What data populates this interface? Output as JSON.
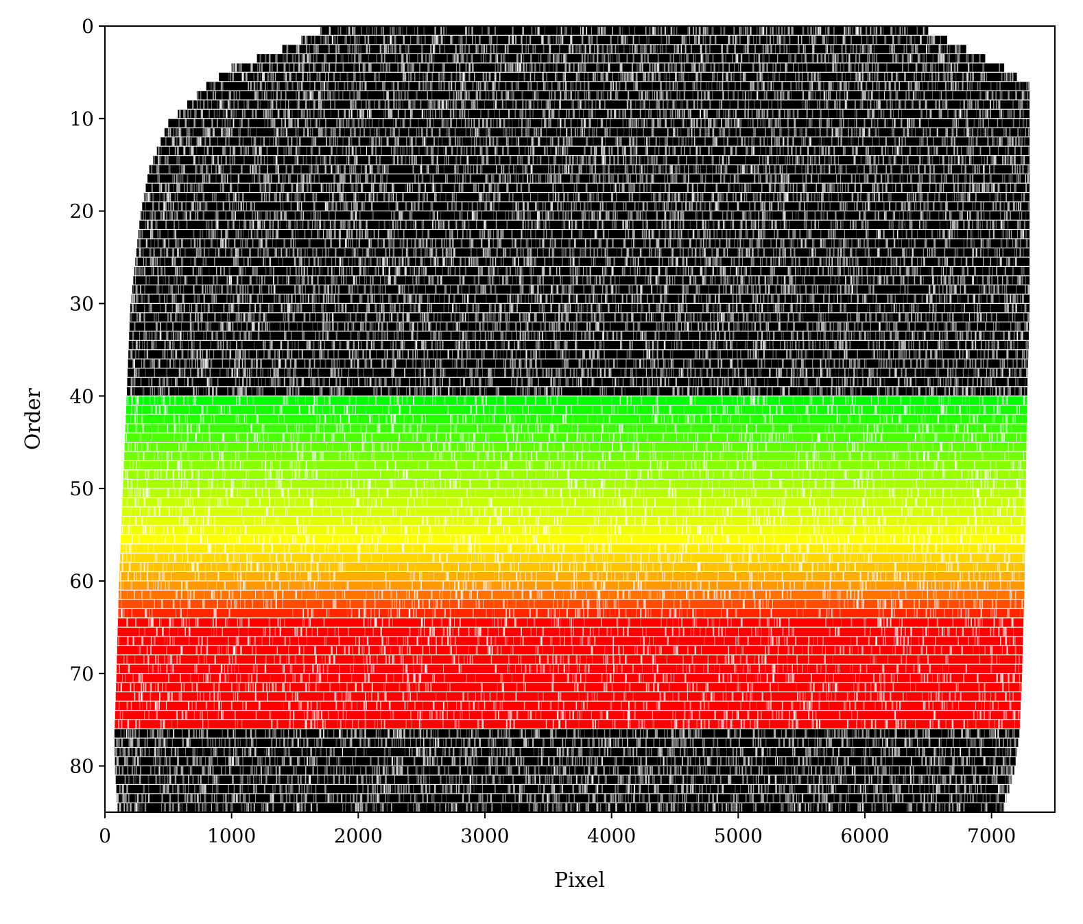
{
  "chart_data": {
    "type": "heatmap",
    "title": "",
    "xlabel": "Pixel",
    "ylabel": "Order",
    "xlim": [
      0,
      7500
    ],
    "ylim": [
      85,
      0
    ],
    "y_inverted": true,
    "x_ticks": [
      0,
      1000,
      2000,
      3000,
      4000,
      5000,
      6000,
      7000
    ],
    "x_tick_labels": [
      "0",
      "1000",
      "2000",
      "3000",
      "4000",
      "5000",
      "6000",
      "7000"
    ],
    "y_ticks": [
      0,
      10,
      20,
      30,
      40,
      50,
      60,
      70,
      80
    ],
    "y_tick_labels": [
      "0",
      "10",
      "20",
      "30",
      "40",
      "50",
      "60",
      "70",
      "80"
    ],
    "grid": false,
    "n_orders": 85,
    "colormap_default": "grayscale",
    "highlighted_orders": {
      "from": 40,
      "to": 75
    },
    "highlight_gradient": [
      {
        "order": 40,
        "color": "#00ff00"
      },
      {
        "order": 48,
        "color": "#99ff00"
      },
      {
        "order": 55,
        "color": "#ffff00"
      },
      {
        "order": 60,
        "color": "#ff9900"
      },
      {
        "order": 64,
        "color": "#ff0000"
      },
      {
        "order": 75,
        "color": "#ff0000"
      }
    ],
    "order_extent_pixel": [
      {
        "order": 0,
        "x0": 1700,
        "x1": 6500
      },
      {
        "order": 2,
        "x0": 1400,
        "x1": 6800
      },
      {
        "order": 4,
        "x0": 1000,
        "x1": 7100
      },
      {
        "order": 6,
        "x0": 800,
        "x1": 7300
      },
      {
        "order": 10,
        "x0": 500,
        "x1": 7300
      },
      {
        "order": 15,
        "x0": 350,
        "x1": 7300
      },
      {
        "order": 20,
        "x0": 280,
        "x1": 7300
      },
      {
        "order": 30,
        "x0": 200,
        "x1": 7300
      },
      {
        "order": 40,
        "x0": 170,
        "x1": 7280
      },
      {
        "order": 50,
        "x0": 140,
        "x1": 7270
      },
      {
        "order": 60,
        "x0": 110,
        "x1": 7260
      },
      {
        "order": 70,
        "x0": 90,
        "x1": 7240
      },
      {
        "order": 76,
        "x0": 75,
        "x1": 7220
      },
      {
        "order": 80,
        "x0": 80,
        "x1": 7180
      },
      {
        "order": 84,
        "x0": 100,
        "x1": 7100
      }
    ]
  }
}
